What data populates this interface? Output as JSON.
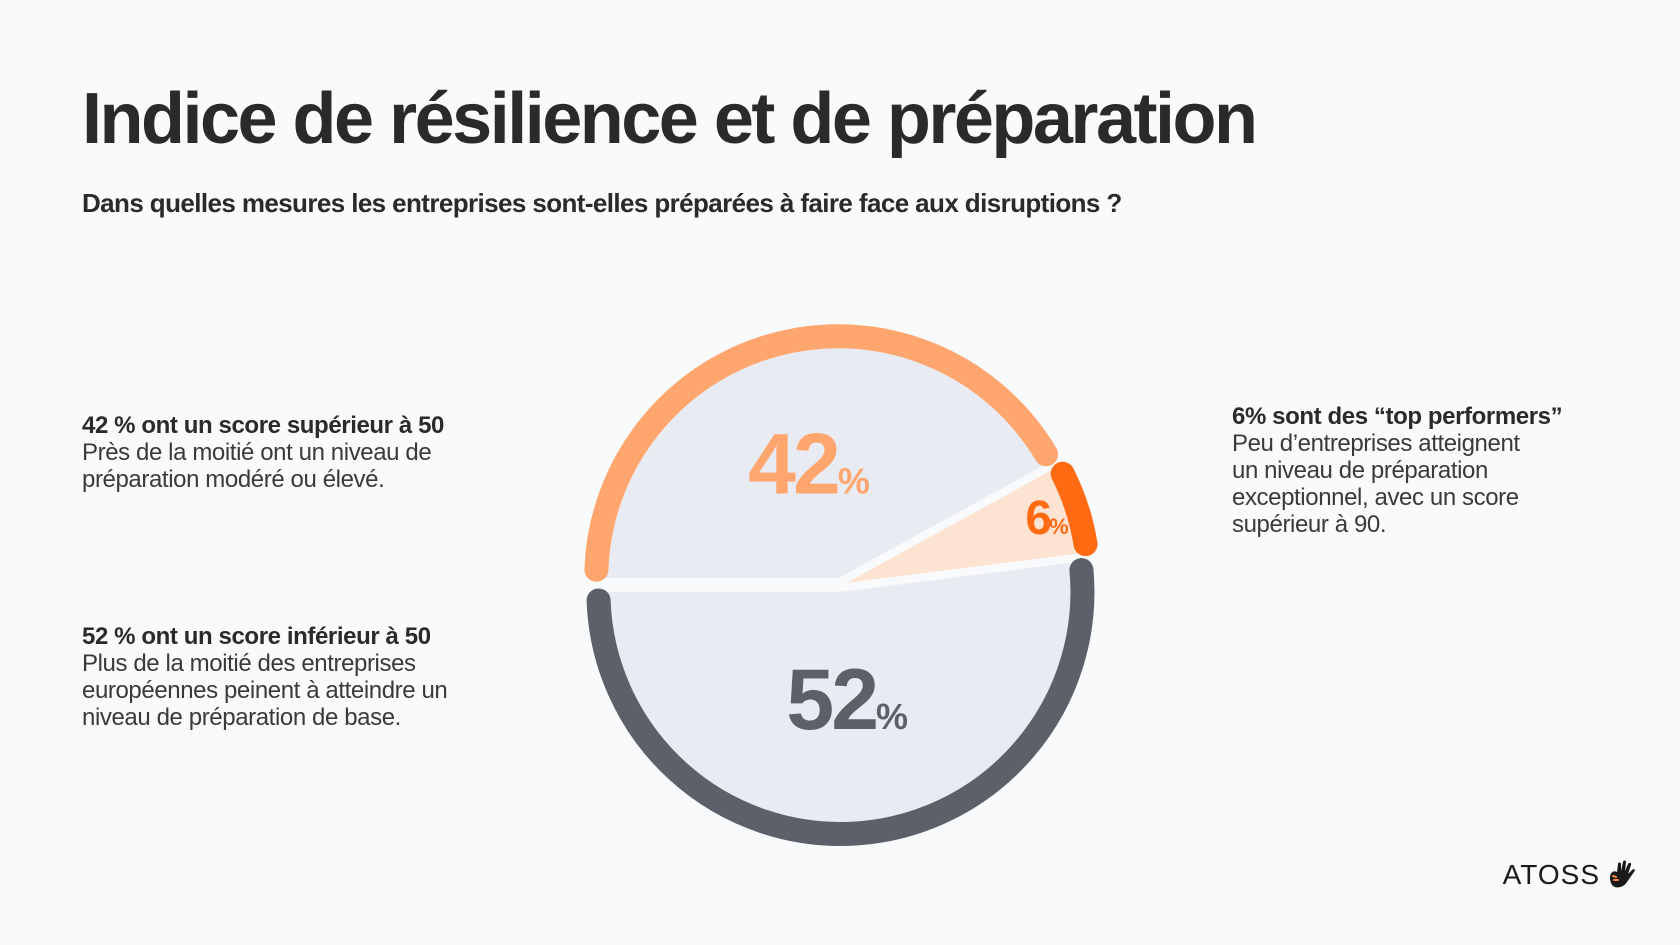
{
  "title": "Indice de résilience et de préparation",
  "subtitle": "Dans quelles mesures les entreprises sont-elles préparées à faire face aux disruptions ?",
  "notes": {
    "high": {
      "head": "42 % ont un score supérieur à 50",
      "body": "Près de la moitié ont un niveau de\npréparation modéré ou élevé."
    },
    "low": {
      "head": "52 % ont un score inférieur à 50",
      "body": "Plus de la moitié des entreprises\neuropéennes peinent à atteindre un\nniveau de préparation de base."
    },
    "top": {
      "head": "6% sont des “top performers”",
      "body": "Peu d’entreprises atteignent\nun niveau de préparation\nexceptionnel, avec un score\nsupérieur à 90."
    }
  },
  "brand": {
    "logo_text": "ATOSS",
    "logo_icon": "hand-icon"
  },
  "colors": {
    "high": "#ffa56e",
    "top": "#ff6a13",
    "top_fill": "#fde3d2",
    "low": "#5c6069",
    "slice_fill": "#e8ebf1",
    "background": "#f8fafc"
  },
  "chart_data": {
    "type": "pie",
    "categories": [
      "42%",
      "6%",
      "52%"
    ],
    "values": [
      42,
      6,
      52
    ],
    "labels": [
      {
        "number": "42",
        "unit": "%"
      },
      {
        "number": "6",
        "unit": "%"
      },
      {
        "number": "52",
        "unit": "%"
      }
    ],
    "title": ""
  }
}
